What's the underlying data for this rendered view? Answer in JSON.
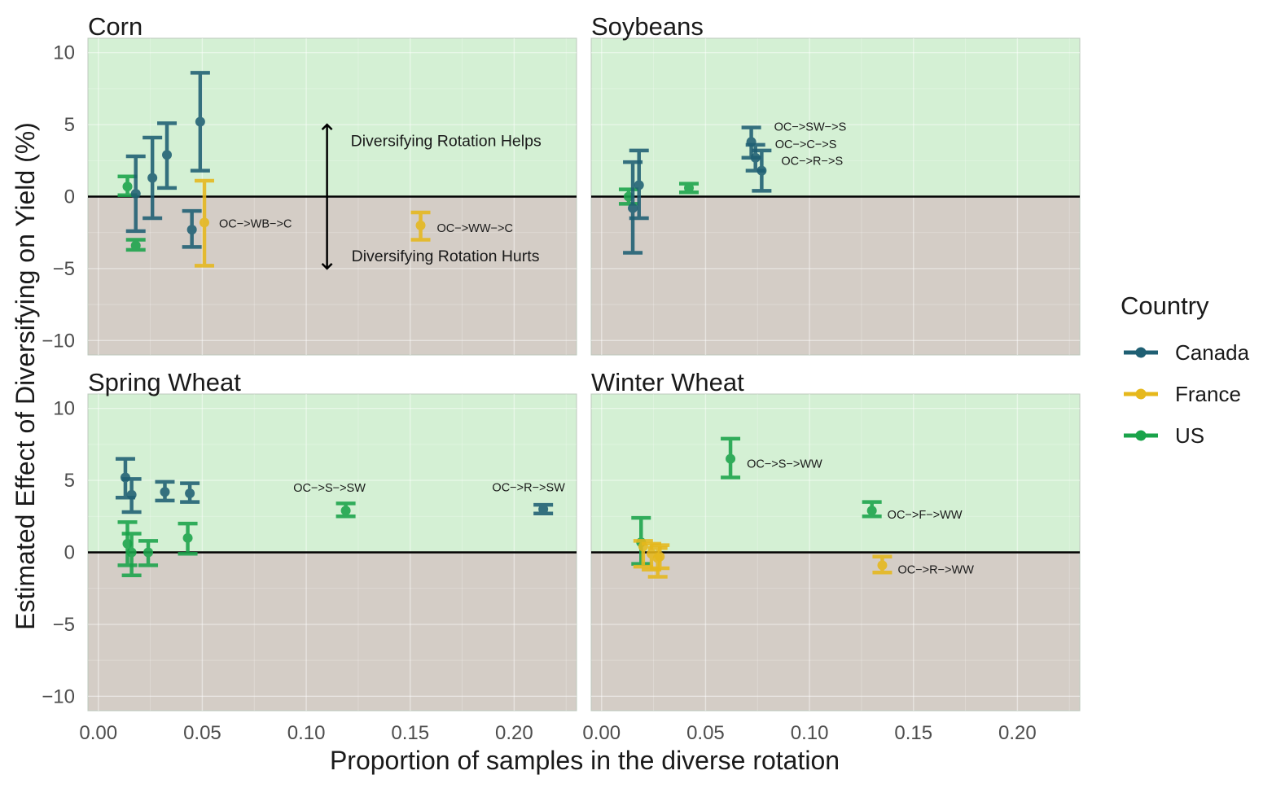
{
  "chart_data": {
    "type": "scatter",
    "xlabel": "Proportion of samples in the diverse rotation",
    "ylabel": "Estimated Effect of Diversifying on Yield (%)",
    "xlim": [
      -0.005,
      0.23
    ],
    "ylim": [
      -11,
      11
    ],
    "x_ticks": [
      0,
      0.05,
      0.1,
      0.15,
      0.2
    ],
    "x_tick_labels": [
      "0.00",
      "0.05",
      "0.10",
      "0.15",
      "0.20"
    ],
    "y_ticks": [
      -10,
      -5,
      0,
      5,
      10
    ],
    "y_tick_labels": [
      "−10",
      "−5",
      "0",
      "5",
      "10"
    ],
    "grid": true,
    "legend": {
      "title": "Country",
      "position": "right",
      "entries": [
        {
          "name": "Canada",
          "color": "#1f5f73"
        },
        {
          "name": "France",
          "color": "#e6b81c"
        },
        {
          "name": "US",
          "color": "#1aa34a"
        }
      ]
    },
    "colors": {
      "helps_region": "#d4f0d4",
      "hurts_region": "#d4cdc6",
      "zero_line": "#000000"
    },
    "panels": [
      {
        "title": "Corn",
        "annotations": {
          "helps": "Diversifying Rotation Helps",
          "hurts": "Diversifying Rotation Hurts",
          "arrow_x": 0.11,
          "arrow_y": [
            -5,
            5
          ]
        },
        "points": [
          {
            "country": "US",
            "x": 0.014,
            "y": 0.7,
            "lo": 0.1,
            "hi": 1.4
          },
          {
            "country": "Canada",
            "x": 0.018,
            "y": 0.2,
            "lo": -2.4,
            "hi": 2.8
          },
          {
            "country": "US",
            "x": 0.018,
            "y": -3.4,
            "lo": -3.7,
            "hi": -3.0
          },
          {
            "country": "Canada",
            "x": 0.026,
            "y": 1.3,
            "lo": -1.5,
            "hi": 4.1
          },
          {
            "country": "Canada",
            "x": 0.033,
            "y": 2.9,
            "lo": 0.6,
            "hi": 5.1
          },
          {
            "country": "Canada",
            "x": 0.045,
            "y": -2.3,
            "lo": -3.5,
            "hi": -1.0
          },
          {
            "country": "Canada",
            "x": 0.049,
            "y": 5.2,
            "lo": 1.8,
            "hi": 8.6
          },
          {
            "country": "France",
            "x": 0.051,
            "y": -1.8,
            "lo": -4.8,
            "hi": 1.1,
            "label": "OC−>WB−>C",
            "label_dx": 18,
            "label_dy": 6,
            "label_anchor": "start"
          },
          {
            "country": "France",
            "x": 0.155,
            "y": -2.0,
            "lo": -3.0,
            "hi": -1.1,
            "label": "OC−>WW−>C",
            "label_dx": 20,
            "label_dy": 8,
            "label_anchor": "start"
          }
        ]
      },
      {
        "title": "Soybeans",
        "points": [
          {
            "country": "US",
            "x": 0.013,
            "y": 0.0,
            "lo": -0.5,
            "hi": 0.5
          },
          {
            "country": "Canada",
            "x": 0.015,
            "y": -0.8,
            "lo": -3.9,
            "hi": 2.4
          },
          {
            "country": "Canada",
            "x": 0.018,
            "y": 0.8,
            "lo": -1.5,
            "hi": 3.2
          },
          {
            "country": "US",
            "x": 0.042,
            "y": 0.6,
            "lo": 0.3,
            "hi": 0.9
          },
          {
            "country": "Canada",
            "x": 0.072,
            "y": 3.8,
            "lo": 2.7,
            "hi": 4.8,
            "label": "OC−>SW−>S",
            "label_dx": 28,
            "label_dy": -14,
            "label_anchor": "start"
          },
          {
            "country": "Canada",
            "x": 0.074,
            "y": 2.7,
            "lo": 1.8,
            "hi": 3.6,
            "label": "OC−>C−>S",
            "label_dx": 24,
            "label_dy": -12,
            "label_anchor": "start"
          },
          {
            "country": "Canada",
            "x": 0.077,
            "y": 1.8,
            "lo": 0.4,
            "hi": 3.2,
            "label": "OC−>R−>S",
            "label_dx": 24,
            "label_dy": -7,
            "label_anchor": "start"
          }
        ]
      },
      {
        "title": "Spring Wheat",
        "points": [
          {
            "country": "Canada",
            "x": 0.013,
            "y": 5.2,
            "lo": 3.8,
            "hi": 6.5
          },
          {
            "country": "Canada",
            "x": 0.016,
            "y": 4.0,
            "lo": 2.8,
            "hi": 5.1
          },
          {
            "country": "US",
            "x": 0.014,
            "y": 0.6,
            "lo": -0.9,
            "hi": 2.1
          },
          {
            "country": "US",
            "x": 0.016,
            "y": 0.0,
            "lo": -1.6,
            "hi": 1.3
          },
          {
            "country": "US",
            "x": 0.024,
            "y": 0.0,
            "lo": -0.9,
            "hi": 0.8
          },
          {
            "country": "Canada",
            "x": 0.032,
            "y": 4.2,
            "lo": 3.6,
            "hi": 4.9
          },
          {
            "country": "Canada",
            "x": 0.044,
            "y": 4.1,
            "lo": 3.5,
            "hi": 4.8
          },
          {
            "country": "US",
            "x": 0.043,
            "y": 1.0,
            "lo": -0.1,
            "hi": 2.0
          },
          {
            "country": "US",
            "x": 0.119,
            "y": 2.9,
            "lo": 2.5,
            "hi": 3.4,
            "label": "OC−>S−>SW",
            "label_dx": -20,
            "label_dy": -23,
            "label_anchor": "middle"
          },
          {
            "country": "Canada",
            "x": 0.214,
            "y": 3.0,
            "lo": 2.7,
            "hi": 3.3,
            "label": "OC−>R−>SW",
            "label_dx": -18,
            "label_dy": -22,
            "label_anchor": "middle"
          }
        ]
      },
      {
        "title": "Winter Wheat",
        "points": [
          {
            "country": "US",
            "x": 0.019,
            "y": 0.7,
            "lo": -0.8,
            "hi": 2.4
          },
          {
            "country": "France",
            "x": 0.02,
            "y": 0.4,
            "lo": -1.0,
            "hi": 0.8
          },
          {
            "country": "France",
            "x": 0.024,
            "y": -0.1,
            "lo": -1.2,
            "hi": 0.6
          },
          {
            "country": "France",
            "x": 0.027,
            "y": -0.4,
            "lo": -1.7,
            "hi": 0.3
          },
          {
            "country": "France",
            "x": 0.028,
            "y": -0.3,
            "lo": -1.1,
            "hi": 0.5
          },
          {
            "country": "US",
            "x": 0.062,
            "y": 6.5,
            "lo": 5.2,
            "hi": 7.9,
            "label": "OC−>S−>WW",
            "label_dx": 20,
            "label_dy": 11,
            "label_anchor": "start"
          },
          {
            "country": "US",
            "x": 0.13,
            "y": 2.9,
            "lo": 2.5,
            "hi": 3.5,
            "label": "OC−>F−>WW",
            "label_dx": 19,
            "label_dy": 10,
            "label_anchor": "start"
          },
          {
            "country": "France",
            "x": 0.135,
            "y": -0.9,
            "lo": -1.4,
            "hi": -0.3,
            "label": "OC−>R−>WW",
            "label_dx": 19,
            "label_dy": 10,
            "label_anchor": "start"
          }
        ]
      }
    ]
  }
}
